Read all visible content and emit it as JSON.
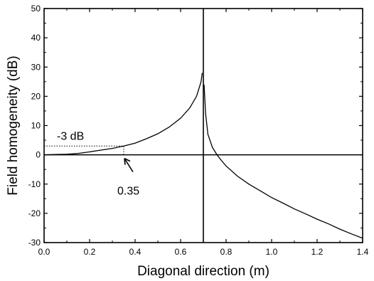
{
  "chart_data": {
    "type": "line",
    "title": "",
    "xlabel": "Diagonal direction (m)",
    "ylabel": "Field homogeneity (dB)",
    "xlim": [
      0.0,
      1.4
    ],
    "ylim": [
      -30,
      50
    ],
    "grid": false,
    "x_ticks": [
      "0.0",
      "0.2",
      "0.4",
      "0.6",
      "0.8",
      "1.0",
      "1.2",
      "1.4"
    ],
    "y_ticks": [
      "-30",
      "-20",
      "-10",
      "0",
      "10",
      "20",
      "30",
      "40",
      "50"
    ],
    "reference_lines": {
      "horizontal_at_y": 0,
      "vertical_at_x": 0.7
    },
    "series": [
      {
        "x": [
          0.0,
          0.05,
          0.1,
          0.15,
          0.2,
          0.25,
          0.3,
          0.35,
          0.4,
          0.45,
          0.5,
          0.55,
          0.6,
          0.64,
          0.67,
          0.69,
          0.695
        ],
        "y": [
          0.0,
          0.1,
          0.2,
          0.5,
          1.0,
          1.6,
          2.2,
          3.0,
          4.0,
          5.5,
          7.2,
          9.5,
          12.5,
          16.0,
          20.0,
          25.0,
          28.0
        ]
      },
      {
        "x": [
          0.703,
          0.71,
          0.72,
          0.74,
          0.76,
          0.78,
          0.8,
          0.85,
          0.9,
          0.95,
          1.0,
          1.05,
          1.1,
          1.15,
          1.2,
          1.25,
          1.3,
          1.35,
          1.4
        ],
        "y": [
          24.0,
          14.0,
          7.0,
          2.5,
          0.0,
          -2.0,
          -3.8,
          -7.3,
          -10.0,
          -12.3,
          -14.6,
          -16.5,
          -18.5,
          -20.2,
          -22.0,
          -23.6,
          -25.4,
          -27.0,
          -28.5
        ]
      }
    ],
    "annotations": [
      {
        "text": "-3 dB",
        "dotted_line": {
          "x_from": 0.0,
          "x_to": 0.35,
          "y": 3.0
        }
      },
      {
        "text": "0.35",
        "arrow_to": {
          "x": 0.35,
          "y": 0.0
        },
        "dotted_line": {
          "x": 0.35,
          "y_from": 0.0,
          "y_to": 3.0
        }
      }
    ],
    "colors": {
      "line": "#000000",
      "background": "#ffffff"
    }
  }
}
